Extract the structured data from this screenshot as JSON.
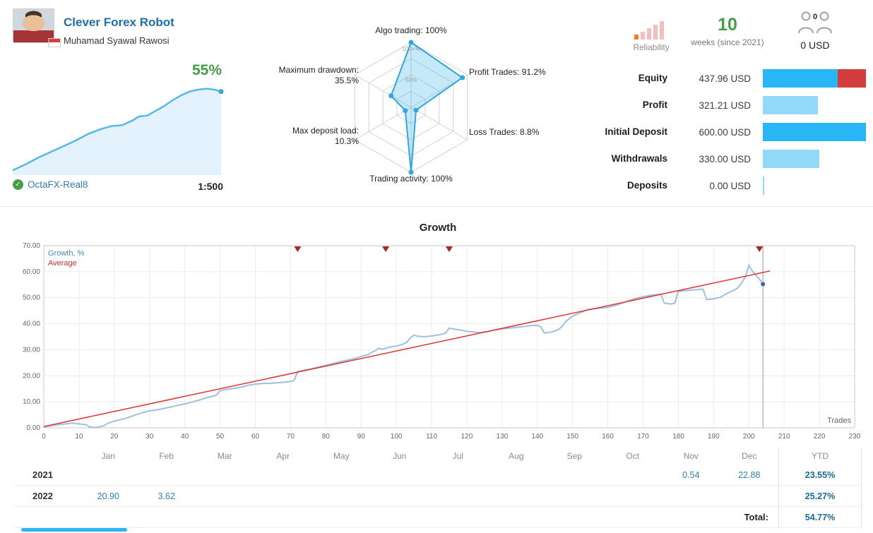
{
  "header": {
    "title": "Clever Forex Robot",
    "author": "Muhamad Syawal Rawosi",
    "growth_badge": "55%",
    "broker": "OctaFX-Real8",
    "leverage": "1:500",
    "sparkline": {
      "color": "#52b9e9",
      "fill": "#e3f2fc",
      "points": [
        [
          0,
          95
        ],
        [
          6,
          89
        ],
        [
          12,
          82
        ],
        [
          18,
          76
        ],
        [
          24,
          70
        ],
        [
          30,
          64
        ],
        [
          36,
          57
        ],
        [
          42,
          52
        ],
        [
          47,
          49
        ],
        [
          52,
          48
        ],
        [
          57,
          43
        ],
        [
          60,
          39
        ],
        [
          64,
          38
        ],
        [
          68,
          33
        ],
        [
          72,
          28
        ],
        [
          76,
          22
        ],
        [
          80,
          17
        ],
        [
          84,
          13
        ],
        [
          88,
          11
        ],
        [
          92,
          10
        ],
        [
          96,
          11
        ],
        [
          99,
          13
        ]
      ]
    }
  },
  "radar": {
    "stroke": "#2fa8df",
    "fill": "rgba(62,181,235,0.30)",
    "axes": [
      {
        "label": "Algo trading: 100%",
        "value": 100
      },
      {
        "label": "Profit Trades: 91.2%",
        "value": 91.2
      },
      {
        "label": "Loss Trades: 8.8%",
        "value": 8.8
      },
      {
        "label": "Trading activity: 100%",
        "value": 100
      },
      {
        "label": "Max deposit load: 10.3%",
        "value": 10.3
      },
      {
        "label": "Maximum drawdown: 35.5%",
        "value": 35.5
      }
    ],
    "ring_labels": [
      "100+%",
      "50%"
    ]
  },
  "reliability": {
    "label": "Reliability",
    "weeks_value": "10",
    "weeks_caption": "weeks (since 2021)",
    "subscribers_count": "0",
    "subscribers_funds": "0 USD"
  },
  "stats": {
    "rows": [
      {
        "label": "Equity",
        "value": "437.96 USD",
        "bar": [
          {
            "color": "#29b6f6",
            "w": 106
          },
          {
            "color": "#d43d3d",
            "w": 40
          }
        ]
      },
      {
        "label": "Profit",
        "value": "321.21 USD",
        "bar": [
          {
            "color": "#90d9f8",
            "w": 78
          }
        ]
      },
      {
        "label": "Initial Deposit",
        "value": "600.00 USD",
        "bar": [
          {
            "color": "#29b6f6",
            "w": 146
          }
        ]
      },
      {
        "label": "Withdrawals",
        "value": "330.00 USD",
        "bar": [
          {
            "color": "#90d9f8",
            "w": 80
          }
        ]
      },
      {
        "label": "Deposits",
        "value": "0.00 USD",
        "bar": [
          {
            "color": "#90d9f8",
            "w": 2
          }
        ]
      }
    ]
  },
  "chart_data": {
    "type": "line",
    "title": "Growth",
    "xlabel": "Trades",
    "ylabel": "Growth, %",
    "xlim": [
      0,
      230
    ],
    "ylim": [
      0,
      70
    ],
    "x_tick_step": 10,
    "y_tick_step": 10,
    "grid": true,
    "legend_position": "top-left",
    "markers_x": [
      72,
      97,
      115,
      203
    ],
    "current_trade_x": 204,
    "end_dot": [
      204,
      55.2
    ],
    "series": [
      {
        "name": "Growth, %",
        "color": "#9fc0dd",
        "width": 2,
        "points": [
          [
            0,
            0.3
          ],
          [
            2,
            0.8
          ],
          [
            4,
            1.2
          ],
          [
            6,
            1.5
          ],
          [
            8,
            1.8
          ],
          [
            10,
            1.5
          ],
          [
            12,
            1.2
          ],
          [
            13,
            0.3
          ],
          [
            15,
            0.1
          ],
          [
            17,
            0.8
          ],
          [
            18,
            1.6
          ],
          [
            20,
            2.6
          ],
          [
            22,
            3.2
          ],
          [
            24,
            4.0
          ],
          [
            26,
            5.0
          ],
          [
            28,
            5.8
          ],
          [
            30,
            6.5
          ],
          [
            32,
            6.9
          ],
          [
            34,
            7.4
          ],
          [
            36,
            8.0
          ],
          [
            38,
            8.6
          ],
          [
            40,
            9.2
          ],
          [
            42,
            9.9
          ],
          [
            44,
            10.6
          ],
          [
            46,
            11.5
          ],
          [
            48,
            12.2
          ],
          [
            49,
            12.6
          ],
          [
            50,
            14.3
          ],
          [
            52,
            14.8
          ],
          [
            54,
            15.2
          ],
          [
            56,
            15.6
          ],
          [
            58,
            16.4
          ],
          [
            60,
            16.8
          ],
          [
            62,
            17.0
          ],
          [
            64,
            17.1
          ],
          [
            66,
            17.3
          ],
          [
            68,
            17.5
          ],
          [
            70,
            17.8
          ],
          [
            71,
            18.2
          ],
          [
            72,
            21.6
          ],
          [
            74,
            22.2
          ],
          [
            76,
            22.7
          ],
          [
            78,
            23.4
          ],
          [
            80,
            24.0
          ],
          [
            82,
            24.7
          ],
          [
            84,
            25.4
          ],
          [
            86,
            26.0
          ],
          [
            88,
            26.6
          ],
          [
            90,
            27.4
          ],
          [
            92,
            28.1
          ],
          [
            93,
            29.0
          ],
          [
            94,
            29.6
          ],
          [
            95,
            30.6
          ],
          [
            96,
            30.2
          ],
          [
            97,
            30.5
          ],
          [
            98,
            31.0
          ],
          [
            100,
            31.4
          ],
          [
            102,
            32.2
          ],
          [
            103,
            33.0
          ],
          [
            104,
            34.6
          ],
          [
            105,
            35.6
          ],
          [
            106,
            35.2
          ],
          [
            108,
            35.0
          ],
          [
            110,
            35.3
          ],
          [
            112,
            35.7
          ],
          [
            114,
            36.4
          ],
          [
            115,
            38.3
          ],
          [
            116,
            38.0
          ],
          [
            118,
            37.6
          ],
          [
            120,
            37.1
          ],
          [
            122,
            36.8
          ],
          [
            124,
            36.6
          ],
          [
            126,
            37.0
          ],
          [
            128,
            37.6
          ],
          [
            130,
            38.0
          ],
          [
            132,
            38.3
          ],
          [
            134,
            38.6
          ],
          [
            136,
            38.9
          ],
          [
            138,
            39.3
          ],
          [
            140,
            39.4
          ],
          [
            141,
            38.8
          ],
          [
            142,
            36.4
          ],
          [
            144,
            36.8
          ],
          [
            146,
            37.8
          ],
          [
            147,
            39.0
          ],
          [
            148,
            40.8
          ],
          [
            150,
            42.9
          ],
          [
            152,
            44.1
          ],
          [
            154,
            45.4
          ],
          [
            156,
            45.8
          ],
          [
            158,
            46.0
          ],
          [
            160,
            46.3
          ],
          [
            162,
            47.0
          ],
          [
            164,
            47.9
          ],
          [
            166,
            48.9
          ],
          [
            168,
            49.8
          ],
          [
            170,
            50.4
          ],
          [
            172,
            50.9
          ],
          [
            174,
            51.2
          ],
          [
            175,
            51.3
          ],
          [
            176,
            47.9
          ],
          [
            178,
            47.6
          ],
          [
            179,
            48.0
          ],
          [
            180,
            52.4
          ],
          [
            182,
            52.7
          ],
          [
            184,
            53.0
          ],
          [
            186,
            53.2
          ],
          [
            187,
            53.3
          ],
          [
            188,
            49.3
          ],
          [
            190,
            49.6
          ],
          [
            192,
            50.2
          ],
          [
            194,
            51.8
          ],
          [
            196,
            53.0
          ],
          [
            197,
            54.0
          ],
          [
            198,
            55.8
          ],
          [
            199,
            58.0
          ],
          [
            200,
            62.4
          ],
          [
            201,
            60.2
          ],
          [
            202,
            58.6
          ],
          [
            203,
            57.2
          ],
          [
            204,
            55.2
          ]
        ]
      },
      {
        "name": "Average",
        "color": "#e03131",
        "width": 1.5,
        "points": [
          [
            0,
            0.5
          ],
          [
            206,
            60.3
          ]
        ]
      }
    ]
  },
  "monthly_table": {
    "months": [
      "Jan",
      "Feb",
      "Mar",
      "Apr",
      "May",
      "Jun",
      "Jul",
      "Aug",
      "Sep",
      "Oct",
      "Nov",
      "Dec"
    ],
    "ytd_label": "YTD",
    "rows": [
      {
        "year": "2021",
        "cells": [
          "",
          "",
          "",
          "",
          "",
          "",
          "",
          "",
          "",
          "",
          "0.54",
          "22.88"
        ],
        "ytd": "23.55%"
      },
      {
        "year": "2022",
        "cells": [
          "20.90",
          "3.62",
          "",
          "",
          "",
          "",
          "",
          "",
          "",
          "",
          "",
          ""
        ],
        "ytd": "25.27%"
      }
    ],
    "total_label": "Total:",
    "total_value": "54.77%"
  },
  "misc": {
    "scrollbar_color": "#29b6f6"
  }
}
